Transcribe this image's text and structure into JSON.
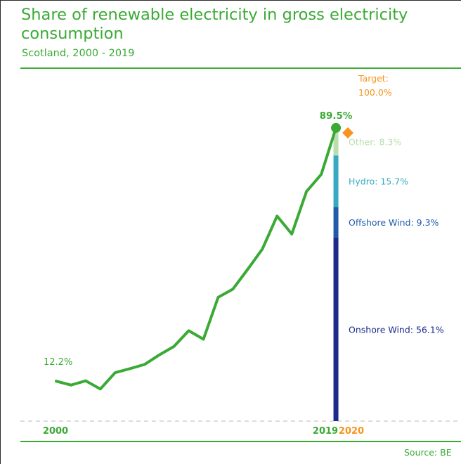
{
  "header": {
    "title": "Share of renewable electricity in gross electricity consumption",
    "subtitle": "Scotland, 2000 - 2019"
  },
  "footer": {
    "source": "Source: BE"
  },
  "colors": {
    "green": "#3aaa35",
    "light_green": "#b9deb0",
    "orange": "#f7941d",
    "hydro": "#38a9c4",
    "offshore": "#1f5ba8",
    "onshore": "#1b2a8c",
    "axis_dash": "#c8c8c8",
    "frame": "#2b2b2b"
  },
  "chart_data": {
    "type": "line",
    "title": "Share of renewable electricity in gross electricity consumption",
    "subtitle": "Scotland, 2000 - 2019",
    "x_unit": "year",
    "y_unit": "%",
    "ylim": [
      0,
      100
    ],
    "grid": false,
    "series": [
      {
        "x": [
          2000,
          2001,
          2002,
          2003,
          2004,
          2005,
          2006,
          2007,
          2008,
          2009,
          2010,
          2011,
          2012,
          2013,
          2014,
          2015,
          2016,
          2017,
          2018,
          2019
        ],
        "values": [
          12.2,
          11.0,
          12.3,
          9.8,
          14.8,
          16.0,
          17.3,
          20.2,
          22.8,
          27.6,
          25.0,
          37.8,
          40.3,
          46.3,
          52.5,
          62.6,
          57.1,
          70.1,
          75.3,
          89.5
        ]
      }
    ],
    "point_labels": {
      "first": "12.2%",
      "last": "89.5%"
    },
    "breakdown_2019": {
      "year": 2019,
      "segments": [
        {
          "name": "Onshore Wind",
          "value": 56.1,
          "label": "Onshore Wind: 56.1%",
          "color": "#1b2a8c"
        },
        {
          "name": "Offshore Wind",
          "value": 9.3,
          "label": "Offshore Wind: 9.3%",
          "color": "#1f5ba8"
        },
        {
          "name": "Hydro",
          "value": 15.7,
          "label": "Hydro: 15.7%",
          "color": "#38a9c4"
        },
        {
          "name": "Other",
          "value": 8.3,
          "label": "Other: 8.3%",
          "color": "#b9deb0"
        }
      ]
    },
    "target": {
      "year": 2020,
      "value": 100.0,
      "label_line1": "Target:",
      "label_line2": "100.0%"
    },
    "x_tick_labels": [
      {
        "year": 2000,
        "label": "2000"
      },
      {
        "year": 2019,
        "label": "2019"
      },
      {
        "year": 2020,
        "label": "2020"
      }
    ]
  }
}
